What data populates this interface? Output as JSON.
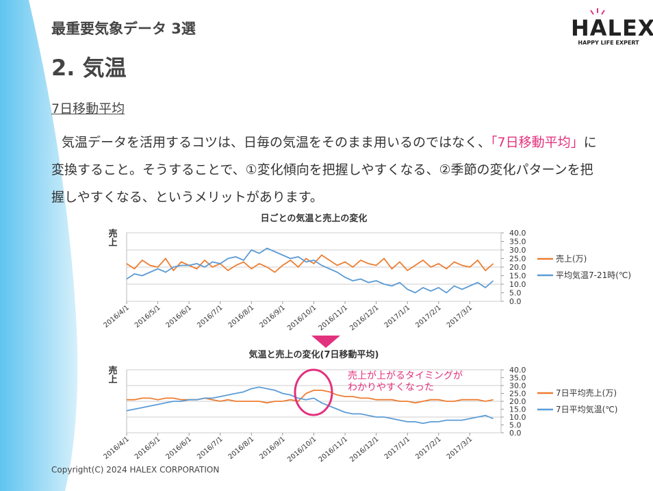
{
  "header": {
    "section": "最重要気象データ 3選",
    "title": "2. 気温"
  },
  "subtitle": "7日移動平均",
  "paragraph": {
    "before": "気温データを活用するコツは、日毎の気温をそのまま用いるのではなく、",
    "highlight": "「7日移動平均」",
    "after": "に変換すること。そうすることで、①変化傾向を把握しやすくなる、②季節の変化パターンを把握しやすくなる、というメリットがあります。"
  },
  "logo": {
    "name": "HALEX",
    "tagline": "HAPPY LIFE EXPERT"
  },
  "footer": "Copyright(C) 2024 HALEX CORPORATION",
  "chart_data": [
    {
      "type": "line",
      "title": "日ごとの気温と売上の変化",
      "ylabel": "売上",
      "categories": [
        "2016/4/1",
        null,
        null,
        null,
        "2016/5/1",
        null,
        null,
        null,
        "2016/6/1",
        null,
        null,
        null,
        "2016/7/1",
        null,
        null,
        null,
        "2016/8/1",
        null,
        null,
        null,
        "2016/9/1",
        null,
        null,
        null,
        "2016/10/1",
        null,
        null,
        null,
        "2016/11/1",
        null,
        null,
        null,
        "2016/12/1",
        null,
        null,
        null,
        "2017/1/1",
        null,
        null,
        null,
        "2017/2/1",
        null,
        null,
        null,
        "2017/3/1",
        null,
        null,
        null
      ],
      "ylim": [
        0,
        40
      ],
      "y2lim": [
        0,
        40
      ],
      "y2ticks": [
        {
          "value": 0,
          "label": "0.0"
        },
        {
          "value": 5,
          "label": "5.0"
        },
        {
          "value": 10,
          "label": "10.0"
        },
        {
          "value": 15,
          "label": "15.0"
        },
        {
          "value": 20,
          "label": "20.0"
        },
        {
          "value": 25,
          "label": "25.0"
        },
        {
          "value": 30,
          "label": "30.0"
        },
        {
          "value": 35,
          "label": "35.0"
        },
        {
          "value": 40,
          "label": "40.0"
        }
      ],
      "grid": true,
      "legend": "right",
      "series": [
        {
          "name": "売上(万)",
          "color": "#ed7d31",
          "values": [
            22,
            19,
            24,
            21,
            20,
            25,
            18,
            23,
            21,
            19,
            24,
            20,
            22,
            18,
            21,
            23,
            19,
            22,
            20,
            17,
            21,
            24,
            20,
            25,
            22,
            27,
            24,
            21,
            23,
            20,
            24,
            22,
            21,
            25,
            19,
            23,
            18,
            21,
            24,
            20,
            22,
            19,
            23,
            21,
            20,
            24,
            18,
            22
          ]
        },
        {
          "name": "平均気温7-21時(℃)",
          "color": "#5b9bd5",
          "axis": "y2",
          "values": [
            13,
            16,
            15,
            17,
            19,
            17,
            20,
            21,
            21,
            22,
            20,
            23,
            22,
            25,
            26,
            24,
            30,
            28,
            31,
            29,
            27,
            25,
            26,
            23,
            24,
            21,
            19,
            17,
            14,
            12,
            13,
            11,
            12,
            10,
            9,
            11,
            7,
            5,
            8,
            6,
            8,
            5,
            9,
            7,
            9,
            11,
            8,
            12
          ]
        }
      ]
    },
    {
      "type": "line",
      "title": "気温と売上の変化(7日移動平均)",
      "ylabel": "売上",
      "categories": [
        "2016/4/1",
        null,
        null,
        null,
        "2016/5/1",
        null,
        null,
        null,
        "2016/6/1",
        null,
        null,
        null,
        "2016/7/1",
        null,
        null,
        null,
        "2016/8/1",
        null,
        null,
        null,
        "2016/9/1",
        null,
        null,
        null,
        "2016/10/1",
        null,
        null,
        null,
        "2016/11/1",
        null,
        null,
        null,
        "2016/12/1",
        null,
        null,
        null,
        "2017/1/1",
        null,
        null,
        null,
        "2017/2/1",
        null,
        null,
        null,
        "2017/3/1",
        null,
        null,
        null
      ],
      "ylim": [
        0,
        40
      ],
      "y2lim": [
        0,
        40
      ],
      "y2ticks": [
        {
          "value": 0,
          "label": "0.0"
        },
        {
          "value": 5,
          "label": "5.0"
        },
        {
          "value": 10,
          "label": "10.0"
        },
        {
          "value": 15,
          "label": "15.0"
        },
        {
          "value": 20,
          "label": "20.0"
        },
        {
          "value": 25,
          "label": "25.0"
        },
        {
          "value": 30,
          "label": "30.0"
        },
        {
          "value": 35,
          "label": "35.0"
        },
        {
          "value": 40,
          "label": "40.0"
        }
      ],
      "grid": true,
      "legend": "right",
      "annotation": [
        "売上が上がるタイミングが",
        "わかりやすくなった"
      ],
      "series": [
        {
          "name": "7日平均売上(万)",
          "color": "#ed7d31",
          "values": [
            21,
            21,
            22,
            22,
            21,
            22,
            22,
            21,
            21,
            21,
            22,
            21,
            20,
            21,
            20,
            20,
            20,
            20,
            19,
            20,
            20,
            21,
            20,
            25,
            27,
            27,
            26,
            24,
            23,
            23,
            22,
            22,
            21,
            21,
            21,
            20,
            20,
            19,
            20,
            21,
            21,
            20,
            20,
            21,
            21,
            21,
            20,
            21
          ]
        },
        {
          "name": "7日平均気温(℃)",
          "color": "#5b9bd5",
          "axis": "y2",
          "values": [
            14,
            15,
            16,
            17,
            18,
            19,
            20,
            20,
            21,
            21,
            22,
            22,
            23,
            24,
            25,
            26,
            28,
            29,
            28,
            27,
            25,
            24,
            22,
            21,
            22,
            19,
            17,
            15,
            13,
            12,
            12,
            11,
            10,
            10,
            9,
            8,
            7,
            7,
            6,
            7,
            7,
            8,
            8,
            8,
            9,
            10,
            11,
            9
          ]
        }
      ]
    }
  ]
}
